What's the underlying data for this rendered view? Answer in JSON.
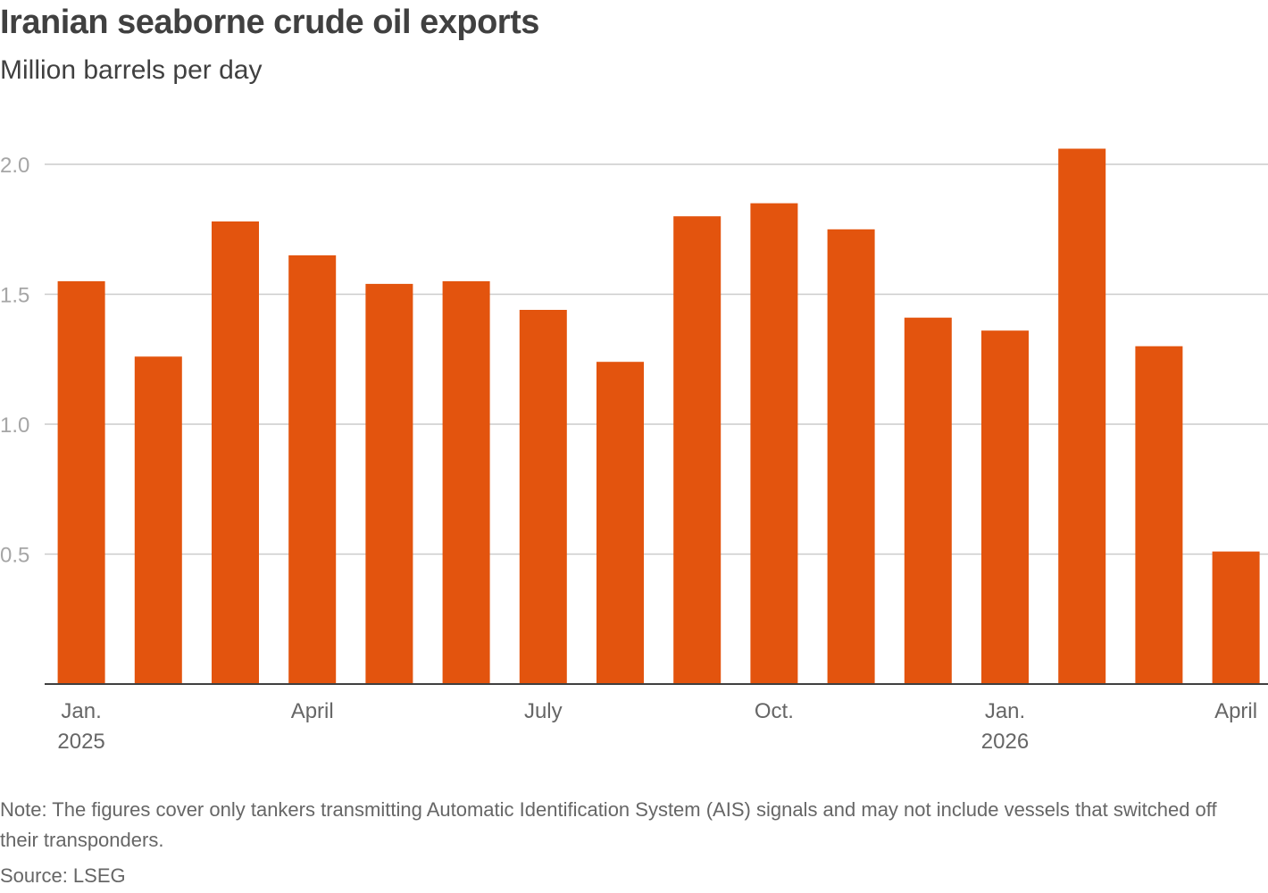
{
  "title": "Iranian seaborne crude oil exports",
  "subtitle": "Million barrels per day",
  "note": "Note: The figures cover only tankers transmitting Automatic Identification System (AIS) signals and may not include vessels that switched off their transponders.",
  "source": "Source: LSEG",
  "colors": {
    "bar": "#e3540e",
    "grid": "#cccccc",
    "axis": "#404040"
  },
  "chart_data": {
    "type": "bar",
    "title": "Iranian seaborne crude oil exports",
    "ylabel": "Million barrels per day",
    "categories": [
      "Jan. 2025",
      "Feb. 2025",
      "Mar. 2025",
      "Apr. 2025",
      "May 2025",
      "Jun. 2025",
      "Jul. 2025",
      "Aug. 2025",
      "Sep. 2025",
      "Oct. 2025",
      "Nov. 2025",
      "Dec. 2025",
      "Jan. 2026",
      "Feb. 2026",
      "Mar. 2026",
      "Apr. 2026"
    ],
    "values": [
      1.55,
      1.26,
      1.78,
      1.65,
      1.54,
      1.55,
      1.44,
      1.24,
      1.8,
      1.85,
      1.75,
      1.41,
      1.36,
      2.06,
      1.3,
      0.51
    ],
    "ylim": [
      0,
      2.15
    ],
    "yticks": [
      {
        "value": 0.5,
        "label": "0.5"
      },
      {
        "value": 1.0,
        "label": "1.0"
      },
      {
        "value": 1.5,
        "label": "1.5"
      },
      {
        "value": 2.0,
        "label": "2.0"
      }
    ],
    "xticks": [
      {
        "index": 0,
        "lines": [
          "Jan.",
          "2025"
        ]
      },
      {
        "index": 3,
        "lines": [
          "April"
        ]
      },
      {
        "index": 6,
        "lines": [
          "July"
        ]
      },
      {
        "index": 9,
        "lines": [
          "Oct."
        ]
      },
      {
        "index": 12,
        "lines": [
          "Jan.",
          "2026"
        ]
      },
      {
        "index": 15,
        "lines": [
          "April"
        ]
      }
    ],
    "grid": true,
    "legend": "none"
  }
}
